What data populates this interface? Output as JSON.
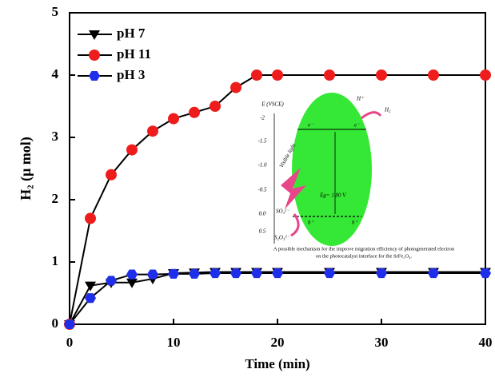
{
  "chart_data": {
    "type": "line",
    "x_label": "Time (min)",
    "y_label": "H₂ (μ mol)",
    "x": [
      0,
      2,
      4,
      6,
      8,
      10,
      12,
      14,
      16,
      18,
      20,
      25,
      30,
      35,
      40
    ],
    "series": [
      {
        "name": "pH 7",
        "color": "#000000",
        "marker": "triangle-down",
        "values": [
          0,
          0.62,
          0.67,
          0.67,
          0.73,
          0.82,
          0.83,
          0.84,
          0.84,
          0.84,
          0.84,
          0.84,
          0.84,
          0.84,
          0.84
        ]
      },
      {
        "name": "pH 11",
        "color": "#ee1c1c",
        "marker": "circle",
        "values": [
          0,
          1.7,
          2.4,
          2.8,
          3.1,
          3.3,
          3.4,
          3.5,
          3.8,
          4.0,
          4.0,
          4.0,
          4.0,
          4.0,
          4.0
        ]
      },
      {
        "name": "pH 3",
        "color": "#1f2ee8",
        "marker": "hexagon",
        "values": [
          0,
          0.42,
          0.7,
          0.8,
          0.8,
          0.81,
          0.81,
          0.82,
          0.82,
          0.82,
          0.82,
          0.82,
          0.82,
          0.82,
          0.82
        ]
      }
    ],
    "line_color": "#000000",
    "xlim": [
      0,
      40
    ],
    "xticks": [
      0,
      10,
      20,
      30,
      40
    ],
    "ylim": [
      0,
      5
    ],
    "yticks": [
      0,
      1,
      2,
      3,
      4,
      5
    ],
    "legend": "upper left",
    "inset": {
      "axis_title": "E (VSCE)",
      "ticks": [
        "-2",
        "-1.5",
        "-1.0",
        "-0.5",
        "0.0",
        "0.5"
      ],
      "light": "Visible light",
      "electron": "e⁻",
      "hole": "h⁺",
      "band_gap": "Eg= 1.80 V",
      "proton": "H⁺",
      "hydrogen": "H₂",
      "donor": "SO₃²⁻",
      "product": "S₂O₃²⁻",
      "caption": [
        "A possible mechanism for the improve migration efficiency of photogenerated electron",
        "on the photocatalyst interface for the SrFe₂O₄."
      ]
    }
  }
}
